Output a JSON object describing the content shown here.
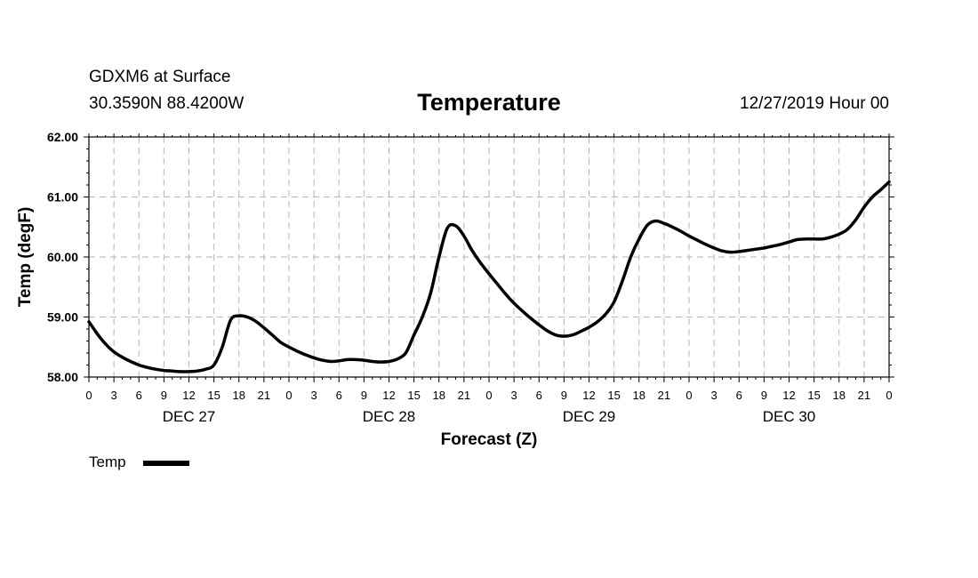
{
  "header": {
    "station": "GDXM6 at Surface",
    "coords": "30.3590N 88.4200W",
    "run_time": "12/27/2019 Hour 00"
  },
  "legend": {
    "label": "Temp"
  },
  "chart_data": {
    "type": "line",
    "title": "Temperature",
    "xlabel": "Forecast (Z)",
    "ylabel": "Temp (degF)",
    "xlim": [
      0,
      96
    ],
    "ylim": [
      58,
      62
    ],
    "grid": true,
    "x_tick_labels": [
      "0",
      "3",
      "6",
      "9",
      "12",
      "15",
      "18",
      "21",
      "0",
      "3",
      "6",
      "9",
      "12",
      "15",
      "18",
      "21",
      "0",
      "3",
      "6",
      "9",
      "12",
      "15",
      "18",
      "21",
      "0",
      "3",
      "6",
      "9",
      "12",
      "15",
      "18",
      "21",
      "0"
    ],
    "y_tick_labels": [
      "58.00",
      "59.00",
      "60.00",
      "61.00",
      "62.00"
    ],
    "y_ticks": [
      58,
      59,
      60,
      61,
      62
    ],
    "date_labels": [
      {
        "label": "DEC 27",
        "at_hour": 12
      },
      {
        "label": "DEC 28",
        "at_hour": 36
      },
      {
        "label": "DEC 29",
        "at_hour": 60
      },
      {
        "label": "DEC 30",
        "at_hour": 84
      }
    ],
    "series": [
      {
        "name": "Temp",
        "x": [
          0,
          1,
          2,
          3,
          4,
          5,
          6,
          7,
          8,
          9,
          10,
          11,
          12,
          13,
          14,
          15,
          16,
          17,
          18,
          19,
          20,
          21,
          22,
          23,
          24,
          25,
          26,
          27,
          28,
          29,
          30,
          31,
          32,
          33,
          34,
          35,
          36,
          37,
          38,
          39,
          40,
          41,
          42,
          43,
          44,
          45,
          46,
          47,
          48,
          49,
          50,
          51,
          52,
          53,
          54,
          55,
          56,
          57,
          58,
          59,
          60,
          61,
          62,
          63,
          64,
          65,
          66,
          67,
          68,
          69,
          70,
          71,
          72,
          73,
          74,
          75,
          76,
          77,
          78,
          79,
          80,
          81,
          82,
          83,
          84,
          85,
          86,
          87,
          88,
          89,
          90,
          91,
          92,
          93,
          94,
          95,
          96
        ],
        "values": [
          58.92,
          58.72,
          58.55,
          58.42,
          58.33,
          58.26,
          58.2,
          58.16,
          58.13,
          58.11,
          58.1,
          58.09,
          58.09,
          58.1,
          58.13,
          58.2,
          58.5,
          58.95,
          59.02,
          59.0,
          58.93,
          58.82,
          58.7,
          58.58,
          58.5,
          58.43,
          58.37,
          58.32,
          58.28,
          58.26,
          58.27,
          58.29,
          58.29,
          58.28,
          58.26,
          58.25,
          58.26,
          58.3,
          58.4,
          58.7,
          59.0,
          59.4,
          60.0,
          60.48,
          60.52,
          60.35,
          60.1,
          59.9,
          59.72,
          59.55,
          59.38,
          59.23,
          59.1,
          58.98,
          58.87,
          58.77,
          58.7,
          58.68,
          58.7,
          58.76,
          58.83,
          58.92,
          59.05,
          59.25,
          59.6,
          60.0,
          60.3,
          60.53,
          60.6,
          60.56,
          60.5,
          60.43,
          60.35,
          60.28,
          60.21,
          60.15,
          60.1,
          60.08,
          60.09,
          60.11,
          60.13,
          60.15,
          60.18,
          60.21,
          60.25,
          60.29,
          60.3,
          60.3,
          60.3,
          60.33,
          60.38,
          60.46,
          60.62,
          60.83,
          61.0,
          61.12,
          61.25
        ]
      }
    ]
  }
}
